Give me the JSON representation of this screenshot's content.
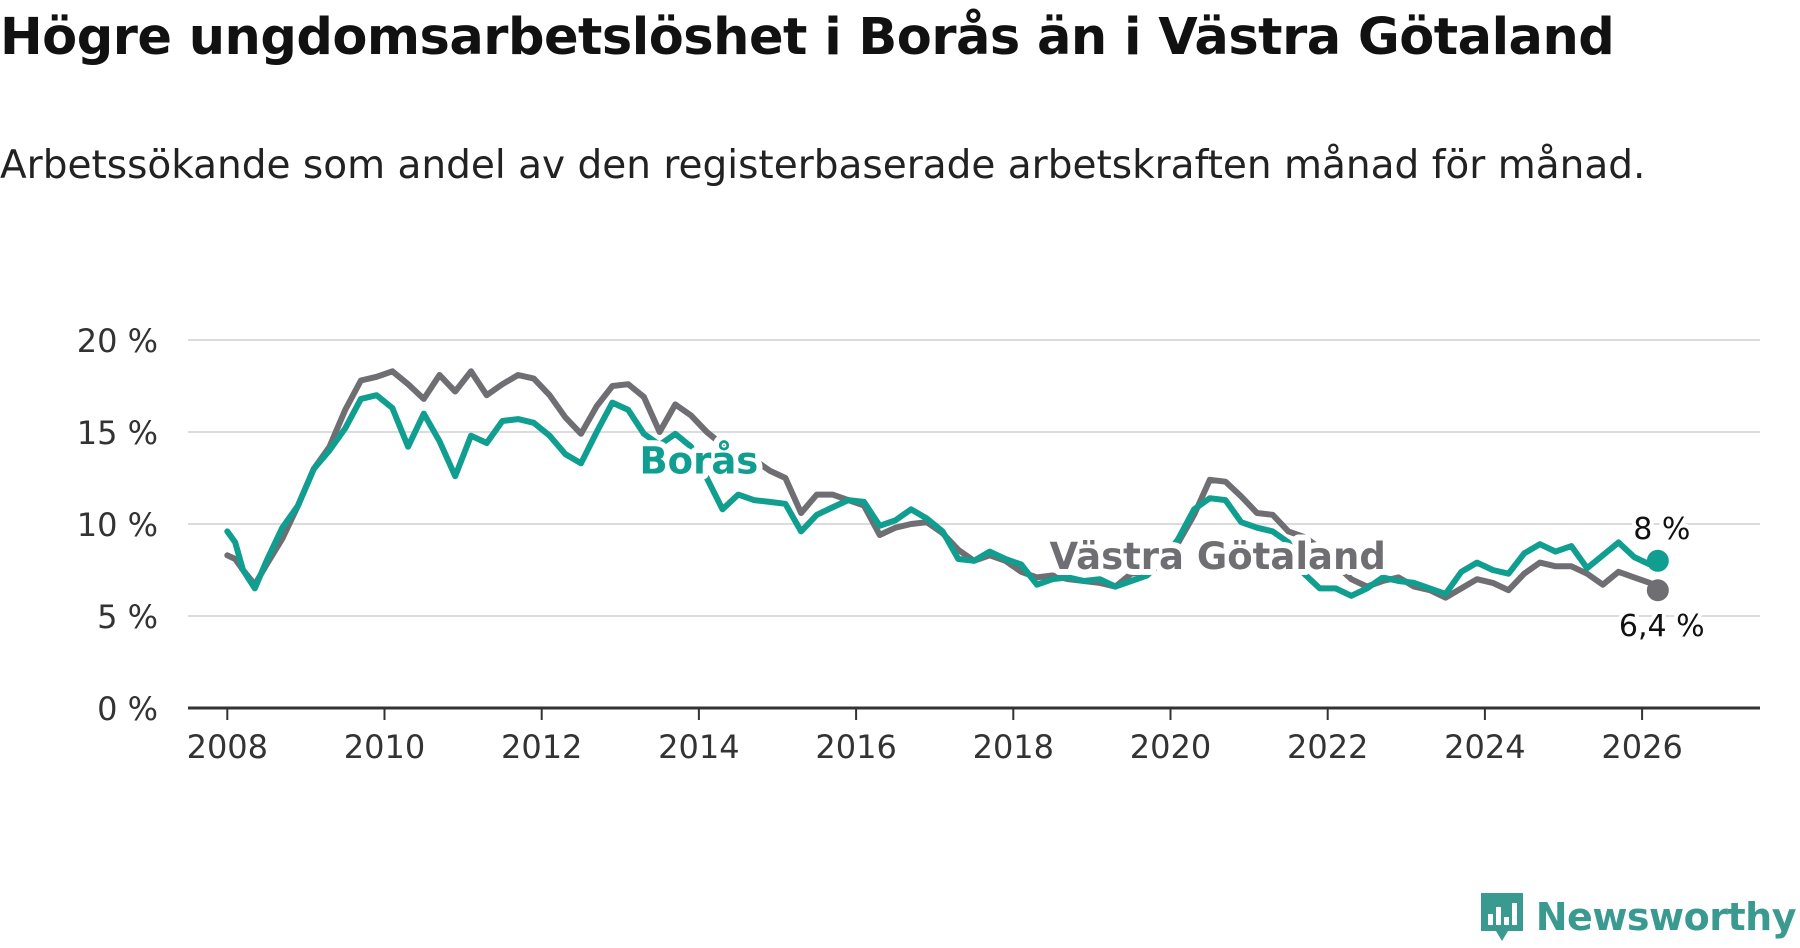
{
  "title": "Högre ungdomsarbetslöshet i Borås än i Västra Götaland",
  "subtitle": "Arbetssökande som andel av den registerbaserade arbetskraften månad för månad.",
  "brand": {
    "name": "Newsworthy",
    "icon": "newsworthy-logo-icon",
    "color": "#3a9a90"
  },
  "chart_data": {
    "type": "line",
    "title": "Högre ungdomsarbetslöshet i Borås än i Västra Götaland",
    "xlabel": "",
    "ylabel": "",
    "xlim": [
      2007.5,
      2027.5
    ],
    "ylim": [
      0,
      20
    ],
    "grid": true,
    "y_ticks": [
      0,
      5,
      10,
      15,
      20
    ],
    "y_tick_labels": [
      "0 %",
      "5 %",
      "10 %",
      "15 %",
      "20 %"
    ],
    "x_ticks": [
      2008,
      2010,
      2012,
      2014,
      2016,
      2018,
      2020,
      2022,
      2024,
      2026
    ],
    "x_tick_labels": [
      "2008",
      "2010",
      "2012",
      "2014",
      "2016",
      "2018",
      "2020",
      "2022",
      "2024",
      "2026"
    ],
    "series": [
      {
        "name": "Västra Götaland",
        "color": "#6f6e72",
        "label_color": "#6f6e72",
        "end_label": "6,4 %",
        "end_value": 6.4,
        "x": [
          2008.0,
          2008.1,
          2008.2,
          2008.35,
          2008.5,
          2008.7,
          2008.9,
          2009.1,
          2009.3,
          2009.5,
          2009.7,
          2009.9,
          2010.1,
          2010.3,
          2010.5,
          2010.7,
          2010.9,
          2011.1,
          2011.3,
          2011.5,
          2011.7,
          2011.9,
          2012.1,
          2012.3,
          2012.5,
          2012.7,
          2012.9,
          2013.1,
          2013.3,
          2013.5,
          2013.7,
          2013.9,
          2014.1,
          2014.3,
          2014.5,
          2014.7,
          2014.9,
          2015.1,
          2015.3,
          2015.5,
          2015.7,
          2015.9,
          2016.1,
          2016.3,
          2016.5,
          2016.7,
          2016.9,
          2017.1,
          2017.3,
          2017.5,
          2017.7,
          2017.9,
          2018.1,
          2018.3,
          2018.5,
          2018.7,
          2018.9,
          2019.1,
          2019.3,
          2019.5,
          2019.7,
          2019.9,
          2020.1,
          2020.3,
          2020.5,
          2020.7,
          2020.9,
          2021.1,
          2021.3,
          2021.5,
          2021.7,
          2021.9,
          2022.1,
          2022.3,
          2022.5,
          2022.7,
          2022.9,
          2023.1,
          2023.3,
          2023.5,
          2023.7,
          2023.9,
          2024.1,
          2024.3,
          2024.5,
          2024.7,
          2024.9,
          2025.1,
          2025.3,
          2025.5,
          2025.7,
          2025.9,
          2026.1,
          2026.2
        ],
        "values": [
          8.3,
          8.1,
          7.5,
          6.7,
          7.8,
          9.2,
          11.0,
          13.0,
          14.2,
          16.2,
          17.8,
          18.0,
          18.3,
          17.6,
          16.8,
          18.1,
          17.2,
          18.3,
          17.0,
          17.6,
          18.1,
          17.9,
          17.0,
          15.8,
          14.9,
          16.4,
          17.5,
          17.6,
          16.9,
          15.0,
          16.5,
          15.9,
          15.0,
          14.3,
          13.6,
          13.5,
          12.9,
          12.5,
          10.6,
          11.6,
          11.6,
          11.3,
          11.0,
          9.4,
          9.8,
          10.0,
          10.1,
          9.5,
          8.6,
          8.0,
          8.3,
          8.0,
          7.4,
          7.1,
          7.2,
          7.0,
          6.9,
          6.8,
          6.6,
          7.3,
          7.4,
          8.0,
          9.0,
          10.5,
          12.4,
          12.3,
          11.5,
          10.6,
          10.5,
          9.6,
          9.3,
          8.7,
          7.8,
          7.0,
          6.6,
          6.9,
          7.1,
          6.6,
          6.4,
          6.0,
          6.5,
          7.0,
          6.8,
          6.4,
          7.3,
          7.9,
          7.7,
          7.7,
          7.3,
          6.7,
          7.4,
          7.1,
          6.8,
          6.4
        ]
      },
      {
        "name": "Borås",
        "color": "#109e90",
        "label_color": "#109e90",
        "end_label": "8 %",
        "end_value": 8.0,
        "x": [
          2008.0,
          2008.1,
          2008.2,
          2008.35,
          2008.5,
          2008.7,
          2008.9,
          2009.1,
          2009.3,
          2009.5,
          2009.7,
          2009.9,
          2010.1,
          2010.3,
          2010.5,
          2010.7,
          2010.9,
          2011.1,
          2011.3,
          2011.5,
          2011.7,
          2011.9,
          2012.1,
          2012.3,
          2012.5,
          2012.7,
          2012.9,
          2013.1,
          2013.3,
          2013.5,
          2013.7,
          2013.9,
          2014.1,
          2014.3,
          2014.5,
          2014.7,
          2014.9,
          2015.1,
          2015.3,
          2015.5,
          2015.7,
          2015.9,
          2016.1,
          2016.3,
          2016.5,
          2016.7,
          2016.9,
          2017.1,
          2017.3,
          2017.5,
          2017.7,
          2017.9,
          2018.1,
          2018.3,
          2018.5,
          2018.7,
          2018.9,
          2019.1,
          2019.3,
          2019.5,
          2019.7,
          2019.9,
          2020.1,
          2020.3,
          2020.5,
          2020.7,
          2020.9,
          2021.1,
          2021.3,
          2021.5,
          2021.7,
          2021.9,
          2022.1,
          2022.3,
          2022.5,
          2022.7,
          2022.9,
          2023.1,
          2023.3,
          2023.5,
          2023.7,
          2023.9,
          2024.1,
          2024.3,
          2024.5,
          2024.7,
          2024.9,
          2025.1,
          2025.3,
          2025.5,
          2025.7,
          2025.9,
          2026.1,
          2026.2
        ],
        "values": [
          9.6,
          9.0,
          7.5,
          6.5,
          8.0,
          9.8,
          11.0,
          13.0,
          14.0,
          15.2,
          16.8,
          17.0,
          16.3,
          14.2,
          16.0,
          14.5,
          12.6,
          14.8,
          14.4,
          15.6,
          15.7,
          15.5,
          14.8,
          13.8,
          13.3,
          15.0,
          16.6,
          16.2,
          14.9,
          14.3,
          14.9,
          14.2,
          12.5,
          10.8,
          11.6,
          11.3,
          11.2,
          11.1,
          9.6,
          10.5,
          10.9,
          11.3,
          11.2,
          9.9,
          10.2,
          10.8,
          10.3,
          9.6,
          8.1,
          8.0,
          8.5,
          8.1,
          7.8,
          6.7,
          7.0,
          7.1,
          6.9,
          7.0,
          6.6,
          6.9,
          7.2,
          8.0,
          9.2,
          10.8,
          11.4,
          11.3,
          10.1,
          9.8,
          9.6,
          9.0,
          7.3,
          6.5,
          6.5,
          6.1,
          6.5,
          7.1,
          6.9,
          6.8,
          6.5,
          6.2,
          7.4,
          7.9,
          7.5,
          7.3,
          8.4,
          8.9,
          8.5,
          8.8,
          7.6,
          8.3,
          9.0,
          8.2,
          7.8,
          8.0
        ]
      }
    ],
    "series_labels": [
      {
        "text": "Borås",
        "x": 2014.0,
        "y": 13.4,
        "color": "#109e90"
      },
      {
        "text": "Västra Götaland",
        "x": 2020.6,
        "y": 8.2,
        "color": "#6f6e72"
      }
    ]
  }
}
